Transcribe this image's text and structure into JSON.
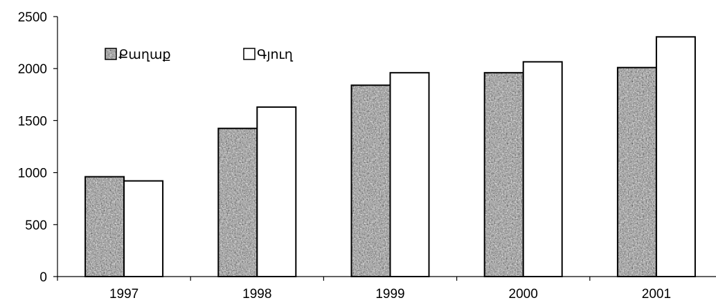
{
  "chart_data": {
    "type": "bar",
    "title": "",
    "xlabel": "",
    "ylabel": "",
    "categories": [
      "1997",
      "1998",
      "1999",
      "2000",
      "2001"
    ],
    "series": [
      {
        "name": "Քաղաք",
        "values": [
          960,
          1425,
          1840,
          1960,
          2010
        ],
        "pattern": "speckled-gray",
        "color": "#8c8c8c"
      },
      {
        "name": "Գյուղ",
        "values": [
          920,
          1630,
          1960,
          2065,
          2305
        ],
        "pattern": "solid-white",
        "color": "#ffffff"
      }
    ],
    "ylim": [
      0,
      2500
    ],
    "yticks": [
      "0",
      "500",
      "1000",
      "1500",
      "2000",
      "2500"
    ],
    "grid": false,
    "legend_position": "top-left"
  }
}
